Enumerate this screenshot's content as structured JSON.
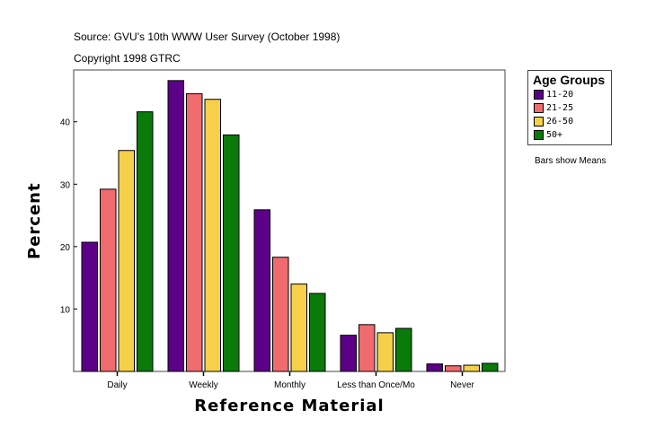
{
  "header": {
    "source": "Source: GVU's 10th WWW User Survey (October 1998)",
    "copyright": "Copyright 1998 GTRC"
  },
  "note": "Bars show Means",
  "chart_data": {
    "type": "bar",
    "title": "",
    "xlabel": "Reference Material",
    "ylabel": "Percent",
    "ylim": [
      0,
      48.3
    ],
    "yticks": [
      10,
      20,
      30,
      40
    ],
    "grid": false,
    "legend_title": "Age Groups",
    "legend_placement": "right",
    "categories": [
      "Daily",
      "Weekly",
      "Monthly",
      "Less than Once/Mo",
      "Never"
    ],
    "series": [
      {
        "name": "11-20",
        "color": "#5c0087",
        "values": [
          20.7,
          46.6,
          25.9,
          5.8,
          1.2
        ]
      },
      {
        "name": "21-25",
        "color": "#f06b6e",
        "values": [
          29.2,
          44.5,
          18.3,
          7.5,
          0.9
        ]
      },
      {
        "name": "26-50",
        "color": "#f5d048",
        "values": [
          35.4,
          43.6,
          14.0,
          6.2,
          1.0
        ]
      },
      {
        "name": "50+",
        "color": "#0a7a0a",
        "values": [
          41.6,
          37.9,
          12.5,
          6.9,
          1.3
        ]
      }
    ]
  }
}
